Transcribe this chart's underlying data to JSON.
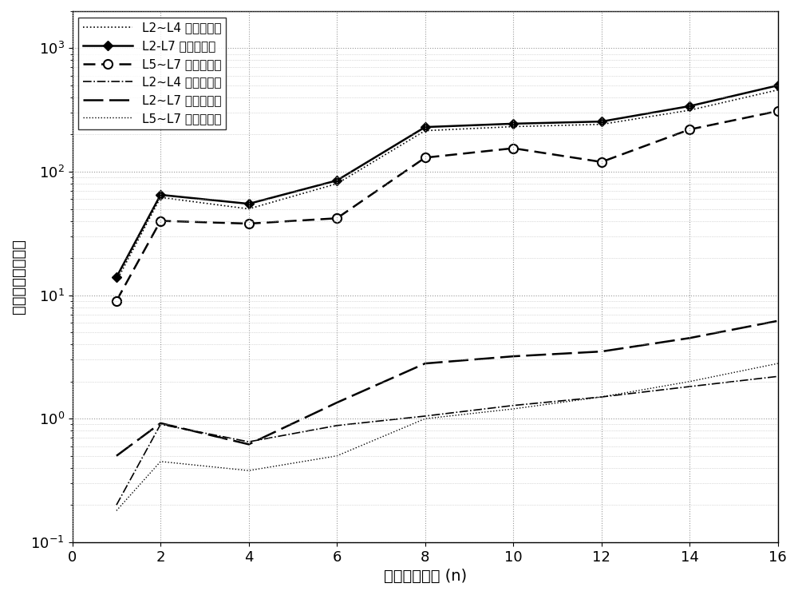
{
  "xlabel": "网络节点个数 (n)",
  "ylabel": "时间延迟（毫秒）",
  "legend_labels": [
    "L2~L4 的处理时间",
    "L2-L7 的处理时间",
    "L5~L7 的处理时间",
    "L2~L4 的匹配时间",
    "L2~L7 的匹配时间",
    "L5~L7 的匹配时间"
  ],
  "L2L4_proc_x": [
    1,
    2,
    4,
    6,
    8,
    10,
    12,
    14,
    16
  ],
  "L2L4_proc_y": [
    13,
    62,
    50,
    80,
    215,
    232,
    242,
    315,
    460
  ],
  "L2L7_proc_x": [
    1,
    2,
    4,
    6,
    8,
    10,
    12,
    14,
    16
  ],
  "L2L7_proc_y": [
    14,
    65,
    55,
    85,
    230,
    245,
    255,
    340,
    500
  ],
  "L5L7_proc_x": [
    1,
    2,
    4,
    6,
    8,
    10,
    12,
    14,
    16
  ],
  "L5L7_proc_y": [
    9,
    40,
    38,
    42,
    130,
    155,
    120,
    220,
    310
  ],
  "L2L4_match_x": [
    1,
    2,
    4,
    6,
    8,
    10,
    12,
    14,
    16
  ],
  "L2L4_match_y": [
    0.2,
    0.9,
    0.65,
    0.88,
    1.05,
    1.28,
    1.5,
    1.82,
    2.2
  ],
  "L2L7_match_x": [
    1,
    2,
    4,
    6,
    8,
    10,
    12,
    14,
    16
  ],
  "L2L7_match_y": [
    0.5,
    0.92,
    0.62,
    1.35,
    2.8,
    3.2,
    3.5,
    4.5,
    6.2
  ],
  "L5L7_match_x": [
    1,
    2,
    4,
    6,
    8,
    10,
    12,
    14,
    16
  ],
  "L5L7_match_y": [
    0.18,
    0.45,
    0.38,
    0.5,
    1.0,
    1.2,
    1.5,
    2.0,
    2.8
  ],
  "xlim": [
    0,
    16
  ],
  "ylim": [
    0.1,
    2000
  ]
}
